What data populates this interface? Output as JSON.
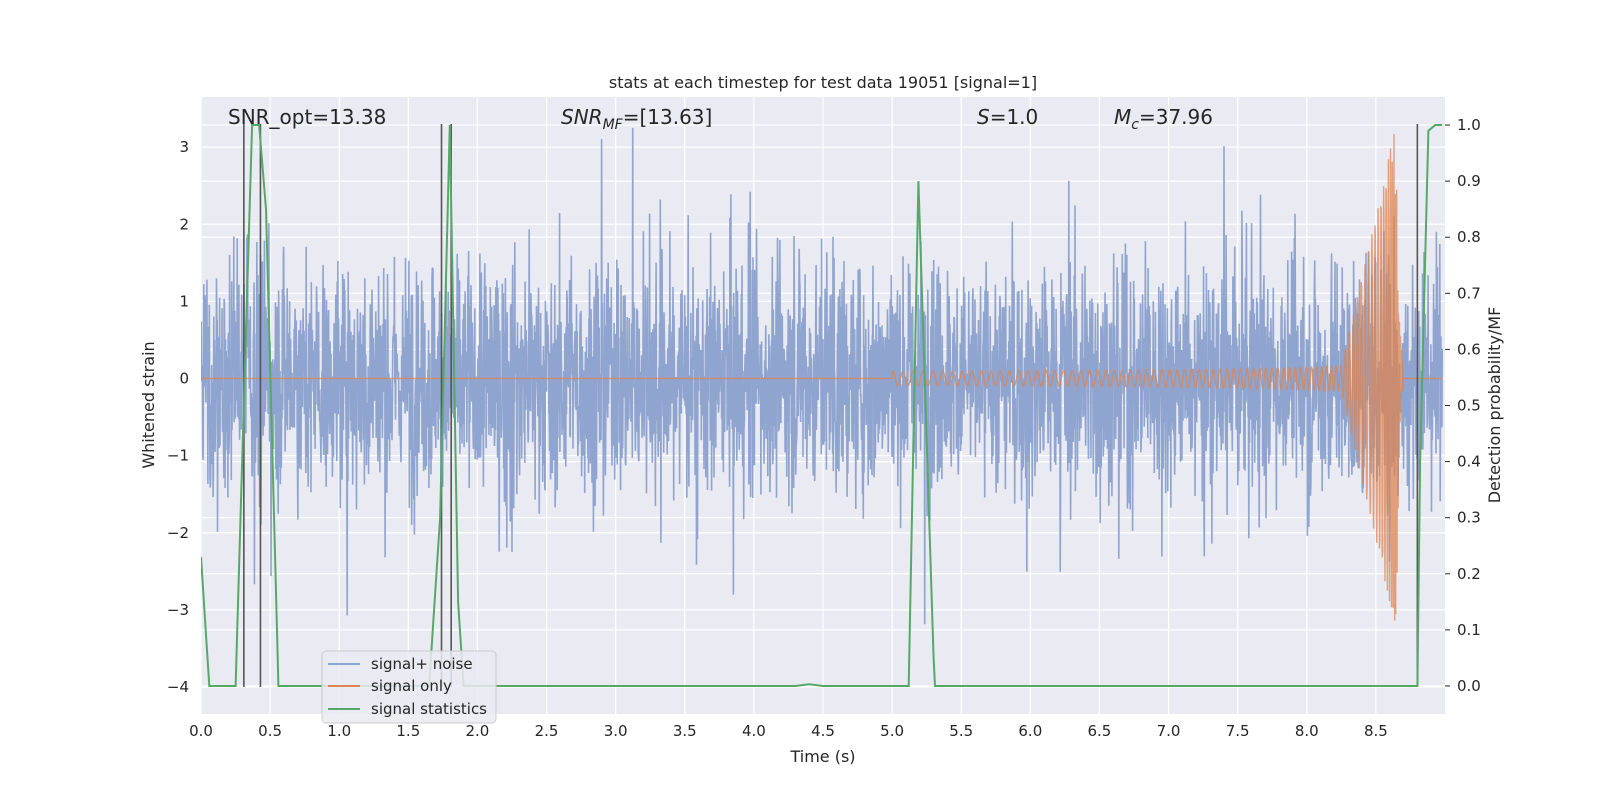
{
  "chart_data": {
    "type": "line",
    "title": "stats at each timestep for test data 19051 [signal=1]",
    "xlabel": "Time (s)",
    "ylabel": "Whitened strain",
    "y2label": "Detection probability/MF",
    "xlim": [
      0.0,
      9.0
    ],
    "ylim": [
      -4.35,
      3.65
    ],
    "y2lim": [
      -0.05,
      1.05
    ],
    "x_ticks": [
      "0.0",
      "0.5",
      "1.0",
      "1.5",
      "2.0",
      "2.5",
      "3.0",
      "3.5",
      "4.0",
      "4.5",
      "5.0",
      "5.5",
      "6.0",
      "6.5",
      "7.0",
      "7.5",
      "8.0",
      "8.5"
    ],
    "y_ticks": [
      "3",
      "2",
      "1",
      "0",
      "−1",
      "−2",
      "−3",
      "−4"
    ],
    "y2_ticks": [
      "1.0",
      "0.9",
      "0.8",
      "0.7",
      "0.6",
      "0.5",
      "0.4",
      "0.3",
      "0.2",
      "0.1",
      "0.0"
    ],
    "annotations": {
      "snr_opt": "SNR_opt=13.38",
      "snr_mf_main": "SNR",
      "snr_mf_sub": "MF",
      "snr_mf_value": "=[13.63]",
      "s_symbol": "S",
      "s_value": "=1.0",
      "mc_symbol": "M",
      "mc_sub": "c",
      "mc_value": "=37.96"
    },
    "legend": {
      "placement": "lower-left",
      "entries": [
        "signal+ noise",
        "signal only",
        "signal statistics"
      ]
    },
    "colors": {
      "noise": "#8fa5cf",
      "signal": "#dd8452",
      "stats": "#55a868",
      "vlines": "#555555",
      "background": "#eaeaf2",
      "grid": "#ffffff"
    },
    "series": [
      {
        "name": "signal+ noise",
        "description_kind": "noise",
        "amplitude_envelope": [
          1.6,
          2.2,
          3.25
        ]
      },
      {
        "name": "signal only",
        "chirp_start_time": 5.0,
        "merger_time": 8.65,
        "peak_amplitude": 3.2
      },
      {
        "name": "signal statistics",
        "x": [
          0.0,
          0.06,
          0.25,
          0.31,
          0.37,
          0.42,
          0.47,
          0.55,
          0.56,
          1.65,
          1.73,
          1.8,
          1.86,
          1.9,
          4.3,
          4.4,
          4.5,
          5.12,
          5.19,
          5.3,
          5.31,
          8.8,
          8.82,
          8.88,
          8.93,
          8.98
        ],
        "y": [
          0.23,
          0.0,
          0.0,
          0.5,
          1.0,
          1.0,
          0.85,
          0.1,
          0.0,
          0.0,
          0.3,
          1.0,
          0.15,
          0.0,
          0.0,
          0.003,
          0.0,
          0.0,
          0.9,
          0.05,
          0.0,
          0.0,
          0.4,
          0.99,
          1.0,
          1.0
        ]
      }
    ],
    "vertical_lines_x": [
      0.31,
      0.43,
      1.74,
      1.81,
      8.8
    ]
  }
}
